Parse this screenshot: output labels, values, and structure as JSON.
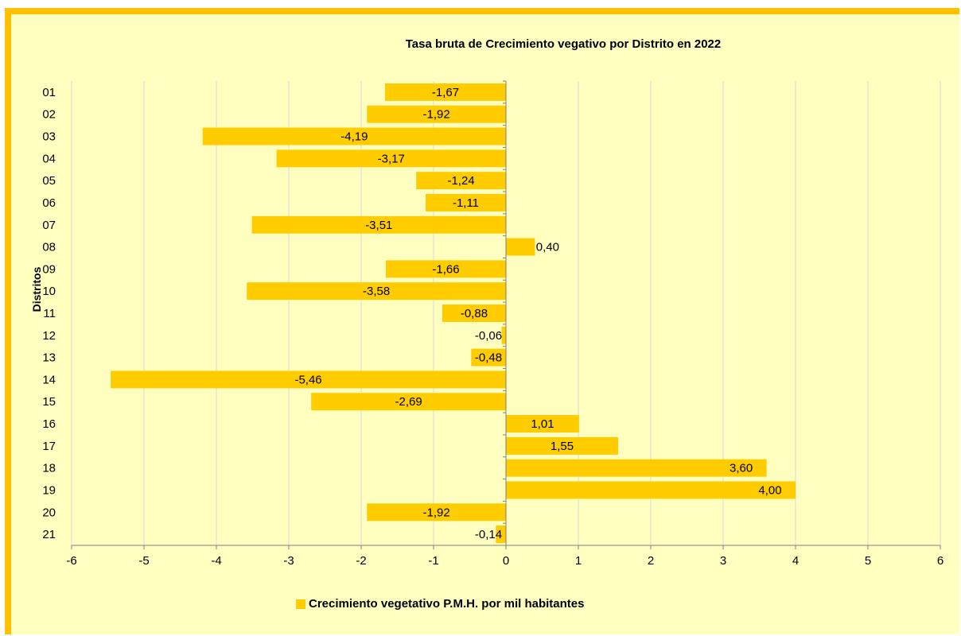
{
  "chart_data": {
    "type": "bar",
    "orientation": "horizontal",
    "title": "Tasa bruta de Crecimiento vegativo por Distrito en 2022",
    "ylabel": "Distritos",
    "xlabel": "",
    "categories": [
      "01",
      "02",
      "03",
      "04",
      "05",
      "06",
      "07",
      "08",
      "09",
      "10",
      "11",
      "12",
      "13",
      "14",
      "15",
      "16",
      "17",
      "18",
      "19",
      "20",
      "21"
    ],
    "series": [
      {
        "name": "Crecimiento vegetativo P.M.H. por mil habitantes",
        "values": [
          -1.67,
          -1.92,
          -4.19,
          -3.17,
          -1.24,
          -1.11,
          -3.51,
          0.4,
          -1.66,
          -3.58,
          -0.88,
          -0.06,
          -0.48,
          -5.46,
          -2.69,
          1.01,
          1.55,
          3.6,
          4.0,
          -1.92,
          -0.14
        ],
        "labels": [
          "-1,67",
          "-1,92",
          "-4,19",
          "-3,17",
          "-1,24",
          "-1,11",
          "-3,51",
          "0,40",
          "-1,66",
          "-3,58",
          "-0,88",
          "-0,06",
          "-0,48",
          "-5,46",
          "-2,69",
          "1,01",
          "1,55",
          "3,60",
          "4,00",
          "-1,92",
          "-0,14"
        ],
        "color": "#ffcc00"
      }
    ],
    "xlim": [
      -6,
      6
    ],
    "xticks": [
      "-6",
      "-5",
      "-4",
      "-3",
      "-2",
      "-1",
      "0",
      "1",
      "2",
      "3",
      "4",
      "5",
      "6"
    ],
    "grid": true,
    "legend": "bottom",
    "colors": {
      "background": "#ffffc0",
      "frame": "#ffc000",
      "bar": "#ffcc00",
      "grid": "#d9d9d9"
    }
  }
}
